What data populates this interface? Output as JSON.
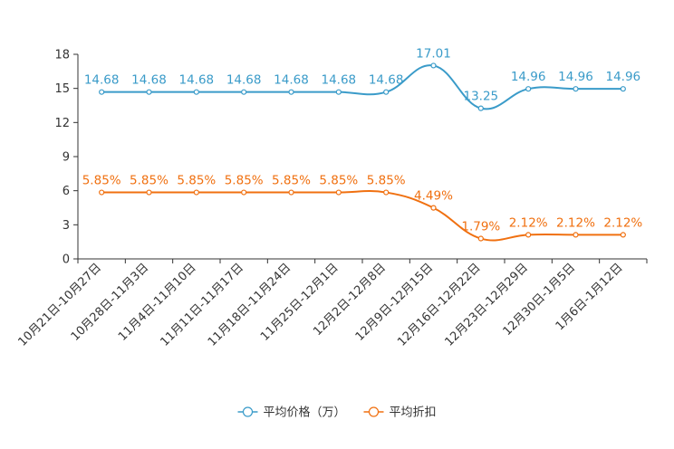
{
  "chart_data": {
    "type": "line",
    "title": "",
    "xlabel": "",
    "ylabel": "",
    "ylim": [
      0,
      18
    ],
    "yticks": [
      0,
      3,
      6,
      9,
      12,
      15,
      18
    ],
    "categories": [
      "10月21日-10月27日",
      "10月28日-11月3日",
      "11月4日-11月10日",
      "11月11日-11月17日",
      "11月18日-11月24日",
      "11月25日-12月1日",
      "12月2日-12月8日",
      "12月9日-12月15日",
      "12月16日-12月22日",
      "12月23日-12月29日",
      "12月30日-1月5日",
      "1月6日-1月12日"
    ],
    "series": [
      {
        "name": "平均价格（万）",
        "color": "#3a9bc9",
        "values": [
          14.68,
          14.68,
          14.68,
          14.68,
          14.68,
          14.68,
          14.68,
          17.01,
          13.25,
          14.96,
          14.96,
          14.96
        ],
        "labels": [
          "14.68",
          "14.68",
          "14.68",
          "14.68",
          "14.68",
          "14.68",
          "14.68",
          "17.01",
          "13.25",
          "14.96",
          "14.96",
          "14.96"
        ]
      },
      {
        "name": "平均折扣",
        "color": "#f07010",
        "values": [
          5.85,
          5.85,
          5.85,
          5.85,
          5.85,
          5.85,
          5.85,
          4.49,
          1.79,
          2.12,
          2.12,
          2.12
        ],
        "labels": [
          "5.85%",
          "5.85%",
          "5.85%",
          "5.85%",
          "5.85%",
          "5.85%",
          "5.85%",
          "4.49%",
          "1.79%",
          "2.12%",
          "2.12%",
          "2.12%"
        ]
      }
    ],
    "legend_position": "bottom-center",
    "grid": false
  }
}
